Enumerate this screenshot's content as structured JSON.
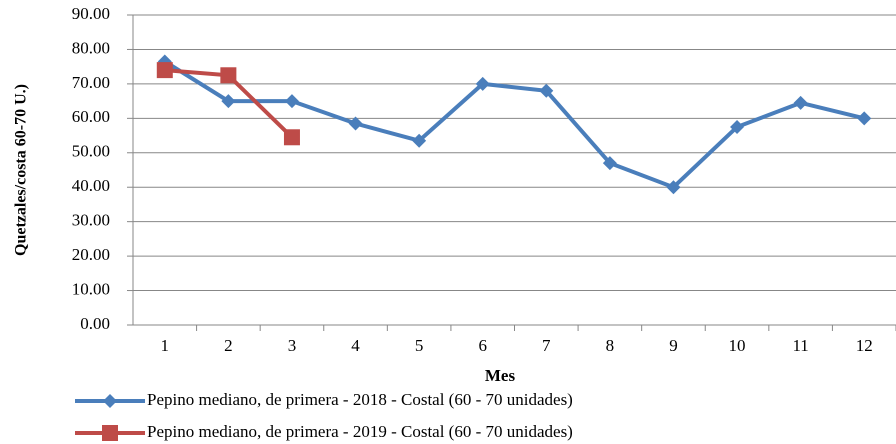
{
  "chart_data": {
    "type": "line",
    "y_label": "Quetzales/costa 60-70 U.)",
    "x_label": "Mes",
    "categories": [
      "1",
      "2",
      "3",
      "4",
      "5",
      "6",
      "7",
      "8",
      "9",
      "10",
      "11",
      "12"
    ],
    "series": [
      {
        "name": "Pepino mediano, de primera - 2018 - Costal (60 - 70 unidades)",
        "color": "#4a7ebb",
        "marker": "diamond",
        "values": [
          76.5,
          65,
          65,
          58.5,
          53.5,
          70,
          68,
          47,
          40,
          57.5,
          64.5,
          60
        ]
      },
      {
        "name": "Pepino mediano, de primera - 2019 - Costal (60 - 70 unidades)",
        "color": "#be4b48",
        "marker": "square",
        "values": [
          74,
          72.5,
          54.5,
          null,
          null,
          null,
          null,
          null,
          null,
          null,
          null,
          null
        ]
      }
    ],
    "ylim": [
      0,
      90
    ],
    "yticks": [
      {
        "value": 0,
        "label": "0.00"
      },
      {
        "value": 10,
        "label": "10.00"
      },
      {
        "value": 20,
        "label": "20.00"
      },
      {
        "value": 30,
        "label": "30.00"
      },
      {
        "value": 40,
        "label": "40.00"
      },
      {
        "value": 50,
        "label": "50.00"
      },
      {
        "value": 60,
        "label": "60.00"
      },
      {
        "value": 70,
        "label": "70.00"
      },
      {
        "value": 80,
        "label": "80.00"
      },
      {
        "value": 90,
        "label": "90.00"
      }
    ],
    "grid": true
  }
}
